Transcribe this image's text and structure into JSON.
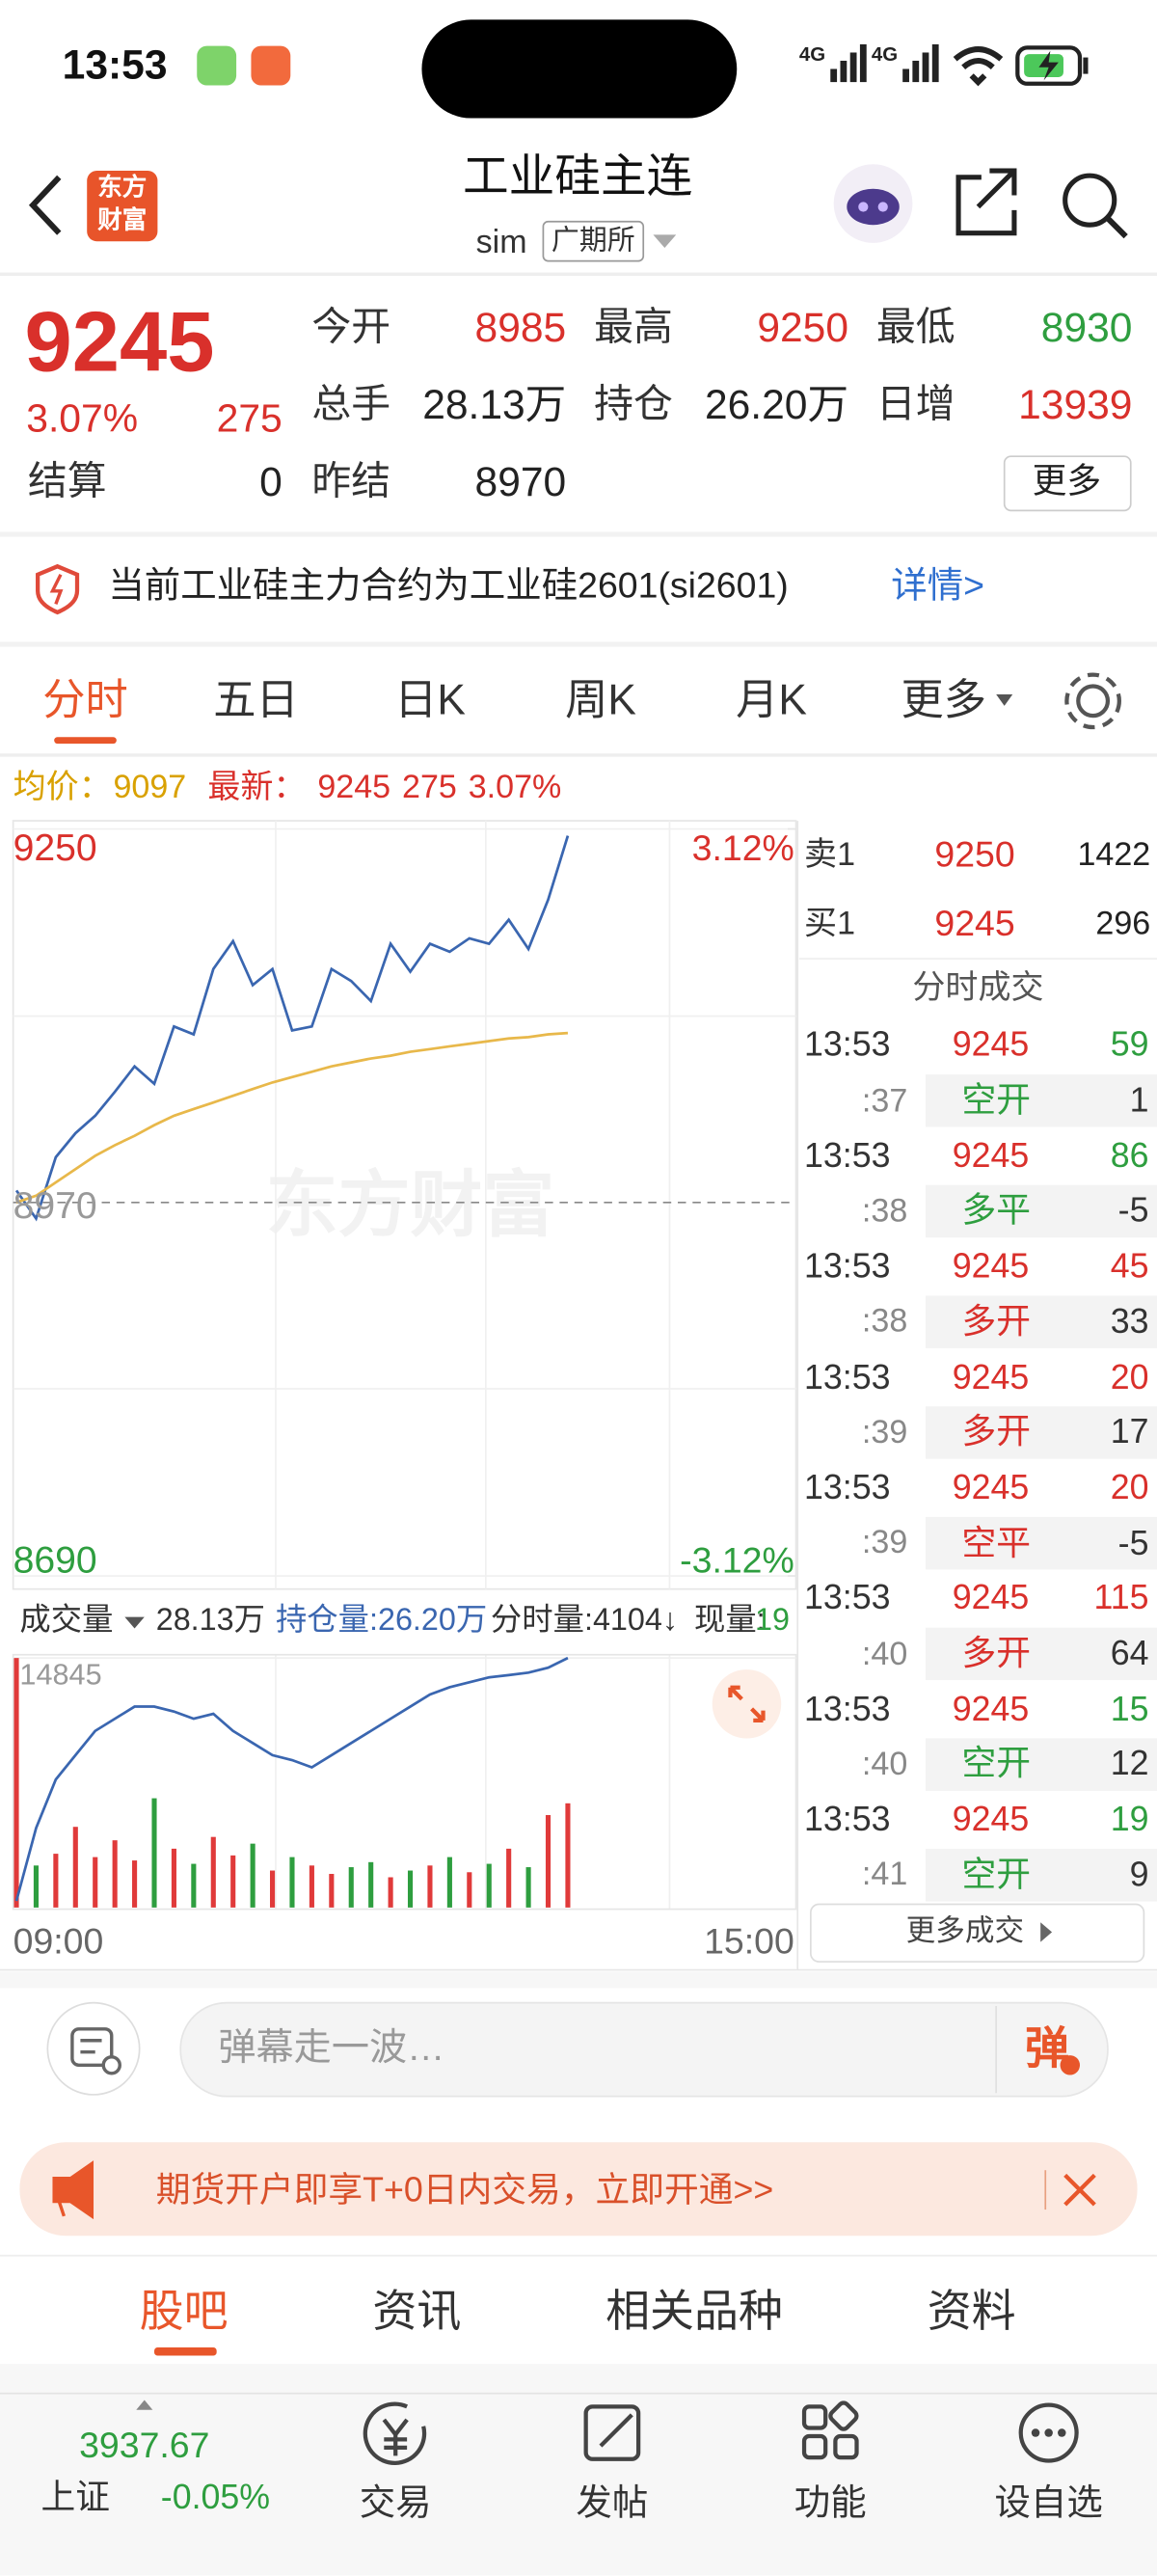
{
  "status_bar": {
    "time": "13:53",
    "network_1": "4G",
    "network_2": "4G"
  },
  "header": {
    "logo_line_1": "东方",
    "logo_line_2": "财富",
    "title": "工业硅主连",
    "subtitle": "sim",
    "exchange": "广期所"
  },
  "quote": {
    "price": "9245",
    "change_pct": "3.07%",
    "change": "275",
    "color": "#d9302b",
    "fields": [
      {
        "label": "今开",
        "value": "8985",
        "color": "#d9302b"
      },
      {
        "label": "最高",
        "value": "9250",
        "color": "#d9302b"
      },
      {
        "label": "最低",
        "value": "8930",
        "color": "#2e9e3f"
      },
      {
        "label": "总手",
        "value": "28.13万",
        "color": "#222222"
      },
      {
        "label": "持仓",
        "value": "26.20万",
        "color": "#222222"
      },
      {
        "label": "日增",
        "value": "13939",
        "color": "#d9302b"
      },
      {
        "label": "结算",
        "value": "0",
        "color": "#222222"
      },
      {
        "label": "昨结",
        "value": "8970",
        "color": "#222222"
      }
    ],
    "more": "更多"
  },
  "notice": {
    "text": "当前工业硅主力合约为工业硅2601(si2601)",
    "link": "详情>"
  },
  "tabs": {
    "items": [
      "分时",
      "五日",
      "日K",
      "周K",
      "月K",
      "更多"
    ],
    "active": 0
  },
  "summary": {
    "avg_label": "均价：",
    "avg": "9097",
    "latest_label": "最新：",
    "latest": "9245",
    "change": "275",
    "change_pct": "3.07%"
  },
  "watermark": "东方财富",
  "chart_data": [
    {
      "type": "line",
      "ylim": [
        8690,
        9250
      ],
      "yticks": [
        8690,
        8970,
        9250
      ],
      "y2lim": [
        -3.12,
        3.12
      ],
      "y2ticks": [
        {
          "value": -3.12,
          "label": "-3.12%"
        },
        {
          "value": 3.12,
          "label": "3.12%"
        }
      ],
      "series": [
        {
          "color": "#3a66b0",
          "values": [
            8979,
            8958,
            9004,
            9022,
            9035,
            9053,
            9072,
            9059,
            9102,
            9096,
            9145,
            9166,
            9133,
            9145,
            9099,
            9102,
            9145,
            9136,
            9121,
            9164,
            9143,
            9164,
            9158,
            9168,
            9164,
            9182,
            9160,
            9197,
            9245
          ]
        },
        {
          "color": "#e8b84a",
          "values": [
            8970,
            8975,
            8985,
            8995,
            9005,
            9013,
            9020,
            9028,
            9035,
            9040,
            9045,
            9050,
            9055,
            9060,
            9064,
            9068,
            9072,
            9075,
            9078,
            9080,
            9083,
            9085,
            9087,
            9089,
            9091,
            9093,
            9094,
            9096,
            9097
          ]
        }
      ]
    },
    {
      "type": "bar",
      "ylim": [
        0,
        14845
      ],
      "yticks": [
        14845
      ],
      "up_color": "#e03a3a",
      "down_color": "#2e9e3f",
      "values": [
        14845,
        2500,
        3200,
        4800,
        3000,
        4000,
        2800,
        6500,
        3500,
        2600,
        4200,
        3100,
        3800,
        2200,
        3000,
        2500,
        2000,
        2400,
        2700,
        1800,
        2200,
        2500,
        3000,
        2100,
        2600,
        3500,
        2400,
        5500,
        6200
      ],
      "open_interest": {
        "color": "#3a66b0",
        "values": [
          25.2,
          25.5,
          25.7,
          25.8,
          25.9,
          25.95,
          26.0,
          26.0,
          25.98,
          25.95,
          25.97,
          25.9,
          25.85,
          25.8,
          25.78,
          25.75,
          25.8,
          25.85,
          25.9,
          25.95,
          26.0,
          26.05,
          26.08,
          26.1,
          26.12,
          26.13,
          26.14,
          26.16,
          26.2
        ]
      },
      "time_labels": [
        "09:00",
        "15:00"
      ]
    }
  ],
  "volume_bar": {
    "label": "成交量",
    "volume": "28.13万",
    "open_interest": "持仓量:26.20万",
    "tick_volume": "分时量:4104↓",
    "current_label": "现量:",
    "current": "19"
  },
  "order_book": {
    "sell": {
      "label": "卖1",
      "price": "9250",
      "volume": "1422"
    },
    "buy": {
      "label": "买1",
      "price": "9245",
      "volume": "296"
    },
    "title": "分时成交",
    "trades": [
      {
        "time": "13:53",
        "price": "9245",
        "volume": "59",
        "second": ":37",
        "kind": "空开",
        "change": "1",
        "color": "#2e9e3f"
      },
      {
        "time": "13:53",
        "price": "9245",
        "volume": "86",
        "second": ":38",
        "kind": "多平",
        "change": "-5",
        "color": "#2e9e3f"
      },
      {
        "time": "13:53",
        "price": "9245",
        "volume": "45",
        "second": ":38",
        "kind": "多开",
        "change": "33",
        "color": "#d9302b"
      },
      {
        "time": "13:53",
        "price": "9245",
        "volume": "20",
        "second": ":39",
        "kind": "多开",
        "change": "17",
        "color": "#d9302b"
      },
      {
        "time": "13:53",
        "price": "9245",
        "volume": "20",
        "second": ":39",
        "kind": "空平",
        "change": "-5",
        "color": "#d9302b"
      },
      {
        "time": "13:53",
        "price": "9245",
        "volume": "115",
        "second": ":40",
        "kind": "多开",
        "change": "64",
        "color": "#d9302b"
      },
      {
        "time": "13:53",
        "price": "9245",
        "volume": "15",
        "second": ":40",
        "kind": "空开",
        "change": "12",
        "color": "#2e9e3f"
      },
      {
        "time": "13:53",
        "price": "9245",
        "volume": "19",
        "second": ":41",
        "kind": "空开",
        "change": "9",
        "color": "#2e9e3f"
      }
    ],
    "more": "更多成交"
  },
  "comment": {
    "placeholder": "弹幕走一波…",
    "button": "弹"
  },
  "banner": {
    "text": "期货开户即享T+0日内交易，立即开通>>"
  },
  "bottom_tabs": {
    "items": [
      "股吧",
      "资讯",
      "相关品种",
      "资料"
    ],
    "active": 0
  },
  "nav": {
    "index_value": "3937.67",
    "index_name": "上证",
    "index_change": "-0.05%",
    "items": [
      "交易",
      "发帖",
      "功能",
      "设自选"
    ]
  }
}
